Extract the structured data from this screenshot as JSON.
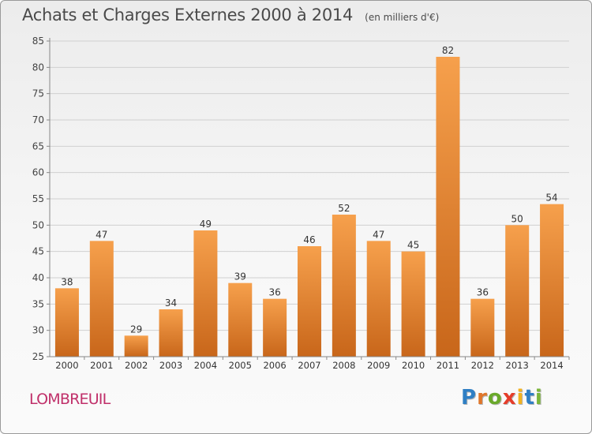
{
  "header": {
    "title": "Achats et Charges Externes 2000 à 2014",
    "subtitle": "(en milliers d'€)"
  },
  "chart_data": {
    "type": "bar",
    "title": "Achats et Charges Externes 2000 à 2014",
    "subtitle": "(en milliers d'€)",
    "categories": [
      "2000",
      "2001",
      "2002",
      "2003",
      "2004",
      "2005",
      "2006",
      "2007",
      "2008",
      "2009",
      "2010",
      "2011",
      "2012",
      "2013",
      "2014"
    ],
    "values": [
      38,
      47,
      29,
      34,
      49,
      39,
      36,
      46,
      52,
      47,
      45,
      82,
      36,
      50,
      54
    ],
    "ylim": [
      25,
      85
    ],
    "yticks": [
      25,
      30,
      35,
      40,
      45,
      50,
      55,
      60,
      65,
      70,
      75,
      80,
      85
    ],
    "grid": true,
    "bar_color_top": "#f6a04c",
    "bar_color_bottom": "#c8661a"
  },
  "footer": {
    "commune": "LOMBREUIL",
    "logo_letters": [
      {
        "char": "P",
        "color": "#2f7fc4"
      },
      {
        "char": "r",
        "color": "#e0762a"
      },
      {
        "char": "o",
        "color": "#6aa92b"
      },
      {
        "char": "x",
        "color": "#e53d2a"
      },
      {
        "char": "i",
        "color": "#f2b220"
      },
      {
        "char": "t",
        "color": "#2f7fc4"
      },
      {
        "char": "i",
        "color": "#7bb63a"
      }
    ]
  }
}
